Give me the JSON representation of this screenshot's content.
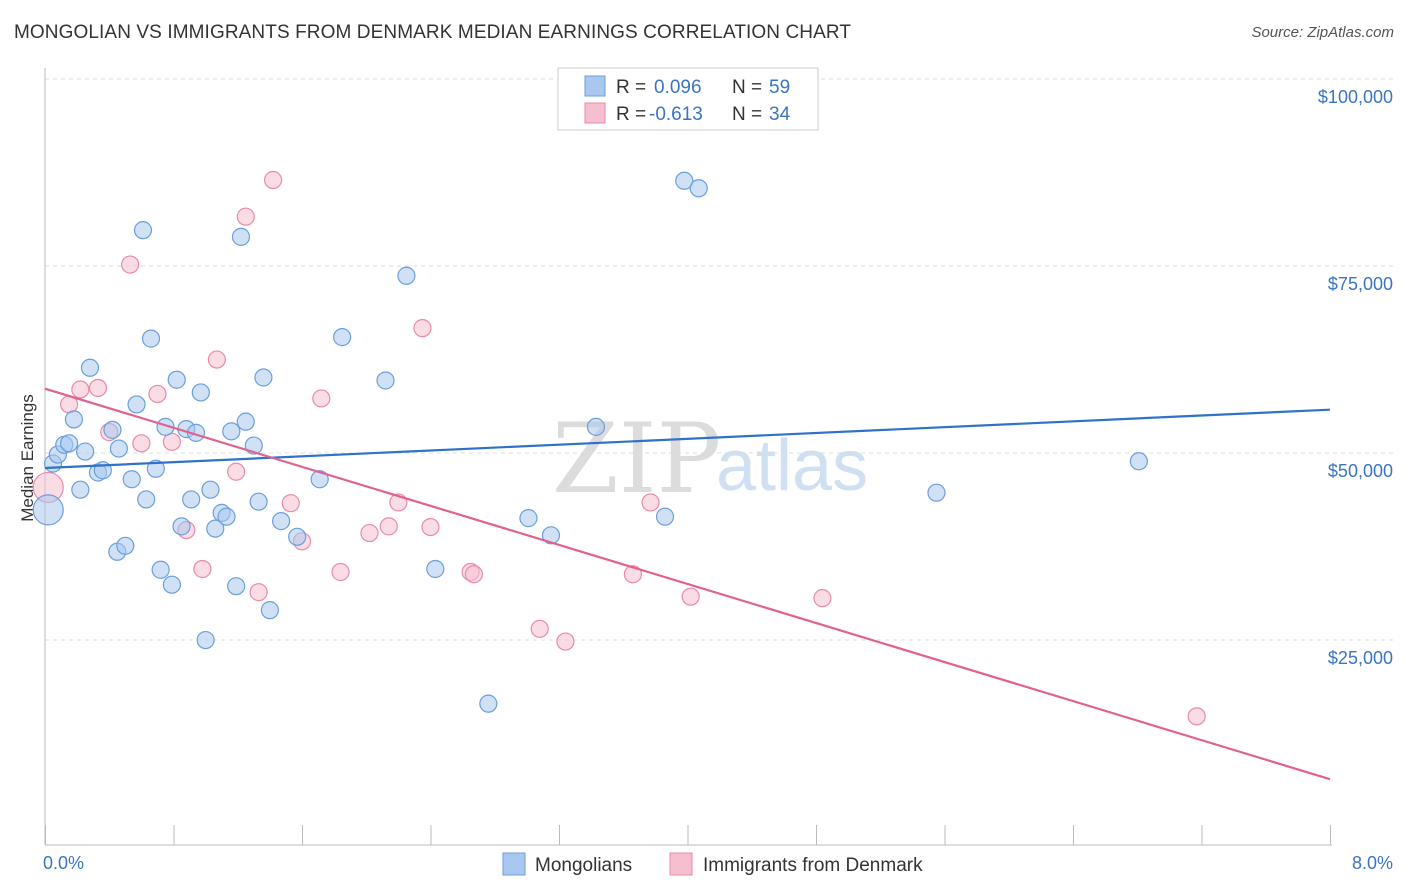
{
  "title": "MONGOLIAN VS IMMIGRANTS FROM DENMARK MEDIAN EARNINGS CORRELATION CHART",
  "source": "Source: ZipAtlas.com",
  "watermark": {
    "zip": "ZIP",
    "atlas": "atlas"
  },
  "colors": {
    "mongolians_fill": "#a9c8ef",
    "mongolians_stroke": "#6a9fdb",
    "mongolians_line": "#2f72c9",
    "denmark_fill": "#f6bfd0",
    "denmark_stroke": "#e98aaa",
    "denmark_line": "#e0628f",
    "tick_color": "#3a75c4"
  },
  "legend": {
    "rows": [
      {
        "r_label": "R =",
        "r_value": "0.096",
        "n_label": "N =",
        "n_value": "59"
      },
      {
        "r_label": "R =",
        "r_value": "-0.613",
        "n_label": "N =",
        "n_value": "34"
      }
    ]
  },
  "bottom_legend": [
    "Mongolians",
    "Immigrants from Denmark"
  ],
  "chart_data": {
    "type": "scatter",
    "title": "MONGOLIAN VS IMMIGRANTS FROM DENMARK MEDIAN EARNINGS CORRELATION CHART",
    "xlabel": "",
    "ylabel": "Median Earnings",
    "xlim": [
      0,
      8.0
    ],
    "ylim": [
      0,
      105000
    ],
    "x_tick_labels": [
      "0.0%",
      "8.0%"
    ],
    "y_ticks": [
      25000,
      50000,
      75000,
      100000
    ],
    "y_tick_labels": [
      "$25,000",
      "$50,000",
      "$75,000",
      "$100,000"
    ],
    "grid": true,
    "legend_position": "top-center",
    "series": [
      {
        "name": "Mongolians",
        "r": 0.096,
        "n": 59,
        "trend": {
          "x": [
            0.0,
            8.0
          ],
          "y": [
            50400,
            58200
          ]
        },
        "points": [
          [
            0.02,
            44800
          ],
          [
            0.05,
            51000
          ],
          [
            0.08,
            52200
          ],
          [
            0.12,
            53500
          ],
          [
            0.15,
            53700
          ],
          [
            0.18,
            56900
          ],
          [
            0.22,
            47500
          ],
          [
            0.25,
            52600
          ],
          [
            0.28,
            63800
          ],
          [
            0.33,
            49800
          ],
          [
            0.36,
            50100
          ],
          [
            0.42,
            55500
          ],
          [
            0.45,
            39200
          ],
          [
            0.46,
            53000
          ],
          [
            0.5,
            40000
          ],
          [
            0.54,
            48900
          ],
          [
            0.57,
            58900
          ],
          [
            0.61,
            82200
          ],
          [
            0.63,
            46200
          ],
          [
            0.66,
            67700
          ],
          [
            0.69,
            50300
          ],
          [
            0.72,
            36800
          ],
          [
            0.75,
            55900
          ],
          [
            0.79,
            34800
          ],
          [
            0.82,
            62200
          ],
          [
            0.85,
            42600
          ],
          [
            0.88,
            55600
          ],
          [
            0.91,
            46200
          ],
          [
            0.94,
            55100
          ],
          [
            0.97,
            60500
          ],
          [
            1.0,
            27400
          ],
          [
            1.03,
            47500
          ],
          [
            1.06,
            42300
          ],
          [
            1.1,
            44400
          ],
          [
            1.13,
            43900
          ],
          [
            1.16,
            55300
          ],
          [
            1.19,
            34600
          ],
          [
            1.22,
            81300
          ],
          [
            1.25,
            56600
          ],
          [
            1.3,
            53400
          ],
          [
            1.33,
            45900
          ],
          [
            1.36,
            62500
          ],
          [
            1.4,
            31400
          ],
          [
            1.47,
            43300
          ],
          [
            1.57,
            41200
          ],
          [
            1.71,
            48900
          ],
          [
            1.85,
            67900
          ],
          [
            2.12,
            62100
          ],
          [
            2.25,
            76100
          ],
          [
            2.43,
            36900
          ],
          [
            2.76,
            18900
          ],
          [
            3.01,
            43700
          ],
          [
            3.15,
            41400
          ],
          [
            3.43,
            55900
          ],
          [
            3.86,
            43900
          ],
          [
            3.98,
            88800
          ],
          [
            4.07,
            87800
          ],
          [
            5.55,
            47100
          ],
          [
            6.81,
            51300
          ]
        ]
      },
      {
        "name": "Immigrants from Denmark",
        "r": -0.613,
        "n": 34,
        "trend": {
          "x": [
            0.0,
            8.0
          ],
          "y": [
            61000,
            8800
          ]
        },
        "points": [
          [
            0.02,
            47800
          ],
          [
            0.15,
            58900
          ],
          [
            0.22,
            60900
          ],
          [
            0.33,
            61100
          ],
          [
            0.4,
            55200
          ],
          [
            0.53,
            77600
          ],
          [
            0.6,
            53700
          ],
          [
            0.7,
            60300
          ],
          [
            0.79,
            53900
          ],
          [
            0.88,
            42100
          ],
          [
            0.98,
            36900
          ],
          [
            1.07,
            64900
          ],
          [
            1.19,
            49900
          ],
          [
            1.25,
            84000
          ],
          [
            1.33,
            33800
          ],
          [
            1.42,
            88900
          ],
          [
            1.53,
            45700
          ],
          [
            1.6,
            40600
          ],
          [
            1.72,
            59700
          ],
          [
            1.84,
            36500
          ],
          [
            2.02,
            41700
          ],
          [
            2.14,
            42600
          ],
          [
            2.2,
            45800
          ],
          [
            2.35,
            69100
          ],
          [
            2.4,
            42500
          ],
          [
            2.65,
            36500
          ],
          [
            2.67,
            36200
          ],
          [
            3.08,
            28900
          ],
          [
            3.24,
            27200
          ],
          [
            3.66,
            36200
          ],
          [
            3.77,
            45800
          ],
          [
            4.02,
            33200
          ],
          [
            4.84,
            33000
          ],
          [
            7.17,
            17200
          ]
        ]
      }
    ]
  }
}
